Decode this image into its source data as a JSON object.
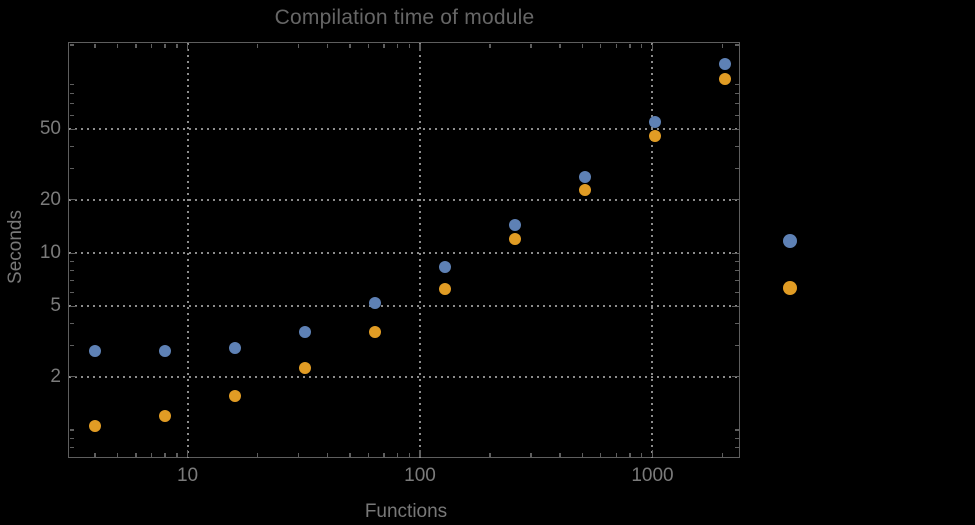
{
  "colors": {
    "background": "#000000",
    "frame": "#5e5e5e",
    "grid": "#8c8c8c",
    "title_text": "#666666",
    "tick_label_text": "#7b7b7b",
    "axis_label_text": "#787878",
    "series_blue": "#5E81B5",
    "series_orange": "#E19C24"
  },
  "chart_data": {
    "type": "scatter",
    "title": "Compilation time of module",
    "xlabel": "Functions",
    "ylabel": "Seconds",
    "x_scale": "log",
    "y_scale": "log",
    "grid": "dotted, at major ticks",
    "x_range": [
      3.09,
      2380
    ],
    "y_range": [
      0.695,
      154
    ],
    "x": [
      4,
      8,
      16,
      32,
      64,
      128,
      256,
      512,
      1024,
      2048
    ],
    "series": [
      {
        "marker": "disk",
        "color": "#5E81B5",
        "values": [
          2.8,
          2.8,
          2.9,
          3.6,
          5.2,
          8.4,
          14.4,
          27,
          55,
          117
        ]
      },
      {
        "marker": "disk",
        "color": "#E19C24",
        "values": [
          1.05,
          1.2,
          1.55,
          2.25,
          3.6,
          6.3,
          12,
          22.7,
          46,
          96
        ]
      }
    ],
    "x_major_ticks": [
      10,
      100,
      1000
    ],
    "x_major_tick_labels": [
      "10",
      "100",
      "1000"
    ],
    "x_minor_ticks": [
      4,
      5,
      6,
      7,
      8,
      9,
      20,
      30,
      40,
      50,
      60,
      70,
      80,
      90,
      200,
      300,
      400,
      500,
      600,
      700,
      800,
      900,
      2000
    ],
    "y_major_ticks": [
      2,
      5,
      10,
      20,
      50
    ],
    "y_major_tick_labels": [
      "2",
      "5",
      "10",
      "20",
      "50"
    ],
    "y_minor_ticks": [
      0.7,
      0.8,
      0.9,
      1,
      3,
      4,
      6,
      7,
      8,
      9,
      30,
      40,
      60,
      70,
      80,
      90,
      150
    ],
    "legend": {
      "position": "right of plot",
      "labels_visible": false,
      "markers": [
        {
          "color": "#5E81B5"
        },
        {
          "color": "#E19C24"
        }
      ]
    }
  }
}
